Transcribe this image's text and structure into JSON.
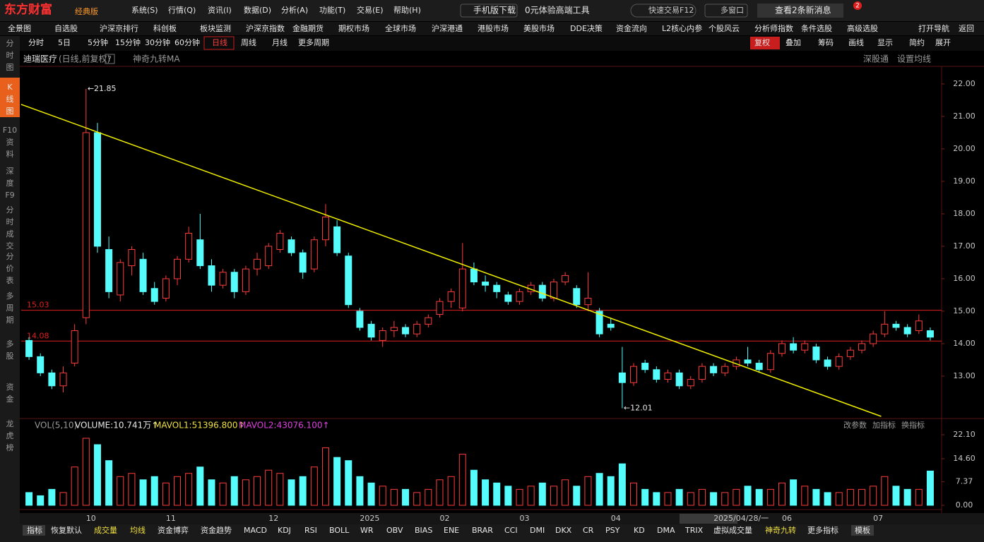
{
  "titlebar": {
    "logo": "东方财富",
    "edition": "经典版",
    "menu": [
      "系统(S)",
      "行情(Q)",
      "资讯(I)",
      "数据(D)",
      "分析(A)",
      "功能(T)",
      "交易(E)",
      "帮助(H)"
    ],
    "mobile": "手机版下载",
    "promo": "0元体验高端工具",
    "quick_trade": "快速交易F12",
    "multi_window": "多窗口",
    "messages": "查看2条新消息",
    "badge": "2"
  },
  "navbar": [
    "全景图",
    "自选股",
    "沪深京排行",
    "科创板",
    "板块监测",
    "沪深京指数",
    "金融期货",
    "期权市场",
    "全球市场",
    "沪深港通",
    "港股市场",
    "美股市场",
    "DDE决策",
    "资金流向",
    "L2核心内参",
    "个股风云",
    "分析师指数",
    "条件选股",
    "高级选股",
    "打开导航",
    "返回"
  ],
  "periods": [
    "分时",
    "5日",
    "5分钟",
    "15分钟",
    "30分钟",
    "60分钟",
    "日线",
    "周线",
    "月线",
    "更多周期"
  ],
  "tools": [
    "复权",
    "叠加",
    "筹码",
    "画线",
    "显示",
    "简约",
    "展开"
  ],
  "sidebar": [
    "分时图",
    "K线图",
    "F10资料",
    "深度F9",
    "分时成交",
    "分价表",
    "多周期",
    "多股",
    "资金",
    "龙虎榜"
  ],
  "chart_data": {
    "type": "candlestick",
    "stock": "迪瑞医疗",
    "mode": "(日线,前复权)",
    "help": "?",
    "indicator": "神奇九转",
    "ma": "MA",
    "links": [
      "深股通",
      "设置均线"
    ],
    "up_color": "#ff3c3c",
    "down_color": "#54fcfc",
    "categories": [
      null,
      null,
      null,
      null,
      null,
      "10",
      null,
      null,
      null,
      null,
      null,
      null,
      "11",
      null,
      null,
      null,
      null,
      null,
      null,
      null,
      null,
      "12",
      null,
      null,
      null,
      null,
      null,
      null,
      null,
      "2025",
      null,
      null,
      null,
      null,
      null,
      null,
      "02",
      null,
      null,
      null,
      null,
      null,
      null,
      "03",
      null,
      null,
      null,
      null,
      null,
      null,
      null,
      "04",
      null,
      null,
      null,
      null,
      null,
      null,
      null,
      null,
      "2025/04/28/一",
      null,
      null,
      null,
      null,
      null,
      "06",
      null,
      null,
      null,
      null,
      null,
      null,
      null,
      "07",
      null,
      null,
      null,
      null,
      null
    ],
    "open": [
      14.1,
      13.6,
      13.1,
      12.7,
      13.4,
      14.8,
      20.5,
      16.9,
      15.5,
      16.4,
      16.6,
      15.7,
      15.4,
      16.0,
      16.6,
      17.2,
      16.4,
      15.8,
      16.2,
      15.6,
      16.3,
      16.4,
      16.9,
      17.2,
      16.8,
      16.3,
      17.2,
      17.6,
      16.7,
      15.0,
      14.6,
      14.1,
      14.4,
      14.5,
      14.3,
      14.6,
      14.9,
      15.3,
      15.1,
      16.3,
      15.9,
      15.8,
      15.5,
      15.3,
      15.6,
      15.8,
      15.4,
      15.9,
      15.7,
      15.2,
      15.0,
      14.6,
      13.1,
      12.8,
      13.4,
      13.2,
      12.9,
      13.1,
      12.7,
      12.9,
      13.3,
      13.1,
      13.3,
      13.5,
      13.4,
      13.2,
      13.7,
      14.0,
      13.8,
      13.9,
      13.5,
      13.3,
      13.6,
      13.8,
      14.0,
      14.3,
      14.6,
      14.5,
      14.4,
      14.4
    ],
    "high": [
      14.2,
      13.7,
      13.2,
      13.3,
      14.6,
      21.85,
      20.8,
      17.3,
      16.6,
      17.0,
      16.8,
      15.9,
      16.1,
      16.7,
      17.6,
      18.0,
      16.6,
      16.3,
      16.3,
      16.4,
      16.8,
      17.1,
      17.5,
      17.3,
      16.9,
      17.3,
      18.3,
      17.8,
      16.8,
      15.1,
      14.7,
      14.5,
      14.7,
      14.6,
      14.7,
      14.9,
      15.4,
      15.7,
      17.1,
      16.5,
      16.1,
      15.9,
      15.6,
      15.7,
      15.9,
      15.9,
      16.0,
      16.2,
      15.8,
      16.2,
      15.1,
      14.8,
      13.9,
      13.4,
      13.5,
      13.3,
      13.2,
      13.2,
      13.0,
      13.4,
      13.4,
      13.4,
      13.6,
      13.9,
      13.5,
      13.8,
      14.1,
      14.2,
      14.1,
      14.0,
      13.6,
      13.7,
      13.9,
      14.1,
      14.4,
      15.0,
      14.7,
      14.6,
      14.9,
      14.5
    ],
    "low": [
      13.5,
      13.0,
      12.6,
      12.5,
      13.3,
      14.6,
      16.8,
      15.4,
      15.3,
      16.1,
      15.5,
      15.2,
      15.3,
      15.8,
      16.5,
      16.3,
      15.6,
      15.7,
      15.4,
      15.5,
      16.1,
      16.3,
      16.8,
      16.7,
      16.0,
      16.2,
      17.0,
      16.7,
      15.1,
      14.4,
      14.1,
      13.9,
      14.2,
      14.2,
      14.2,
      14.5,
      14.8,
      15.1,
      15.0,
      15.8,
      15.6,
      15.4,
      15.2,
      15.2,
      15.5,
      15.3,
      15.3,
      15.8,
      15.1,
      15.0,
      14.2,
      14.4,
      12.01,
      12.7,
      13.1,
      12.8,
      12.8,
      12.6,
      12.6,
      12.8,
      13.0,
      13.0,
      13.2,
      13.3,
      13.1,
      13.1,
      13.6,
      13.7,
      13.7,
      13.4,
      13.2,
      13.2,
      13.5,
      13.7,
      13.9,
      14.2,
      14.4,
      14.2,
      14.3,
      14.1
    ],
    "close": [
      13.6,
      13.1,
      12.7,
      13.1,
      14.4,
      20.5,
      17.0,
      15.6,
      16.5,
      16.9,
      15.6,
      15.3,
      16.0,
      16.6,
      17.4,
      16.4,
      15.8,
      16.2,
      15.6,
      16.3,
      16.6,
      17.0,
      17.4,
      16.8,
      16.2,
      17.2,
      17.9,
      16.8,
      15.2,
      14.5,
      14.2,
      14.4,
      14.5,
      14.3,
      14.6,
      14.8,
      15.3,
      15.6,
      16.3,
      15.9,
      15.8,
      15.6,
      15.3,
      15.6,
      15.8,
      15.4,
      15.9,
      16.1,
      15.2,
      15.4,
      14.3,
      14.5,
      12.8,
      13.3,
      13.2,
      12.9,
      13.1,
      12.7,
      12.9,
      13.3,
      13.1,
      13.3,
      13.5,
      13.4,
      13.2,
      13.7,
      14.0,
      13.8,
      14.0,
      13.5,
      13.3,
      13.6,
      13.8,
      14.0,
      14.3,
      14.6,
      14.5,
      14.3,
      14.7,
      14.2
    ],
    "ylim": [
      11.76,
      22.52
    ],
    "yticks": [
      {
        "value": 13,
        "label": "13.00"
      },
      {
        "value": 14,
        "label": "14.00"
      },
      {
        "value": 15,
        "label": "15.00"
      },
      {
        "value": 16,
        "label": "16.00"
      },
      {
        "value": 17,
        "label": "17.00"
      },
      {
        "value": 18,
        "label": "18.00"
      },
      {
        "value": 19,
        "label": "19.00"
      },
      {
        "value": 20,
        "label": "20.00"
      },
      {
        "value": 21,
        "label": "21.00"
      },
      {
        "value": 22,
        "label": "22.00"
      }
    ],
    "hlines": [
      15.03,
      14.08
    ],
    "hline_color": "#e02020",
    "annotations": [
      {
        "index": 5,
        "value": 21.85,
        "label": "←21.85"
      },
      {
        "index": 52,
        "value": 12.01,
        "label": "←12.01"
      }
    ],
    "trendline": {
      "x": [
        -0.69,
        74.7
      ],
      "y": [
        21.37,
        11.76
      ],
      "color": "#f0f000"
    },
    "volume": {
      "title": "VOL(5,10)",
      "volume_label": "VOLUME:10.741万↑",
      "mavol1": "MAVOL1:51396.800↑",
      "mavol2": "MAVOL2:43076.100↑",
      "actions": [
        "改参数",
        "加指标",
        "换指标"
      ],
      "values": [
        4,
        3,
        5,
        4,
        12,
        21,
        19,
        14,
        9,
        10,
        8,
        9,
        7,
        9,
        10,
        12,
        8,
        7,
        9,
        8,
        9,
        11,
        10,
        8,
        9,
        12,
        18,
        15,
        14,
        9,
        7,
        6,
        5,
        5,
        4,
        5,
        8,
        9,
        16,
        11,
        8,
        7,
        6,
        5,
        6,
        7,
        6,
        8,
        6,
        9,
        10,
        9,
        13,
        7,
        5,
        4,
        4,
        5,
        4,
        5,
        4,
        4,
        5,
        6,
        5,
        5,
        7,
        8,
        6,
        5,
        4,
        4,
        5,
        5,
        6,
        9,
        6,
        5,
        5,
        10.741
      ],
      "ylim": [
        0,
        23.43
      ],
      "yticks": [
        {
          "value": 0,
          "label": "0.00"
        },
        {
          "value": 7.37,
          "label": "7.37"
        },
        {
          "value": 14.6,
          "label": "14.60"
        },
        {
          "value": 22.1,
          "label": "22.10"
        }
      ]
    }
  },
  "bottom_tabs": [
    "指标",
    "恢复默认",
    "成交量",
    "均线",
    "资金博弈",
    "资金趋势",
    "MACD",
    "KDJ",
    "RSI",
    "BOLL",
    "WR",
    "OBV",
    "BIAS",
    "ENE",
    "BRAR",
    "CCI",
    "DMI",
    "DKX",
    "CR",
    "PSY",
    "KD",
    "DMA",
    "TRIX",
    "虚拟成交量",
    "神奇九转",
    "更多指标",
    "模板"
  ]
}
